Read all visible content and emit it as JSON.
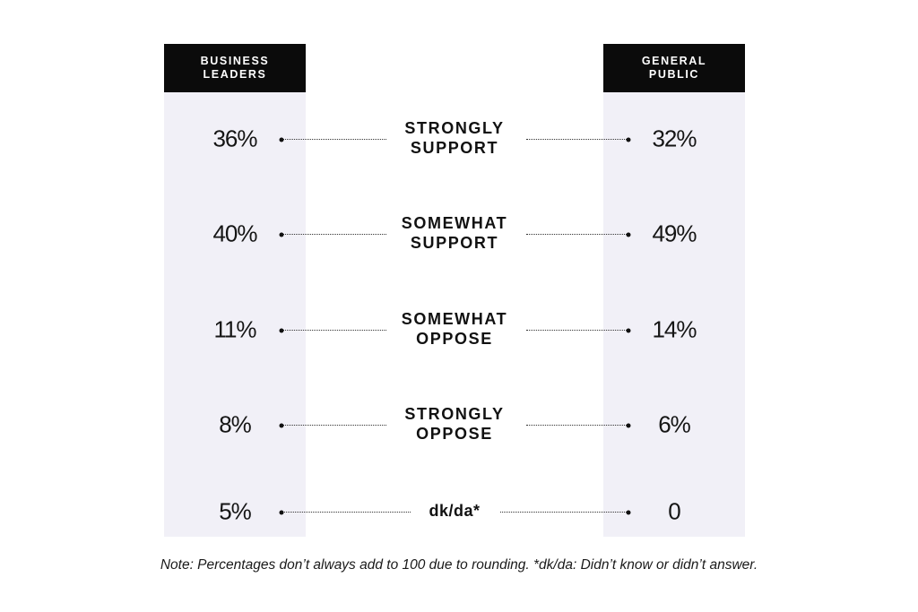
{
  "chart_data": {
    "type": "table",
    "columns": [
      {
        "name": "BUSINESS\nLEADERS"
      },
      {
        "name": "GENERAL\nPUBLIC"
      }
    ],
    "categories": [
      "STRONGLY\nSUPPORT",
      "SOMEWHAT\nSUPPORT",
      "SOMEWHAT\nOPPOSE",
      "STRONGLY\nOPPOSE",
      "dk/da*"
    ],
    "series": [
      {
        "name": "BUSINESS\nLEADERS",
        "values": [
          36,
          40,
          11,
          8,
          5
        ],
        "labels": [
          "36%",
          "40%",
          "11%",
          "8%",
          "5%"
        ]
      },
      {
        "name": "GENERAL\nPUBLIC",
        "values": [
          32,
          49,
          14,
          6,
          0
        ],
        "labels": [
          "32%",
          "49%",
          "14%",
          "6%",
          "0"
        ]
      }
    ],
    "note": "Note: Percentages don’t always add to 100 due to rounding. *dk/da: Didn’t know or didn’t answer.",
    "colors": {
      "header_bg": "#0b0b0b",
      "column_bg": "#f1f0f7",
      "text": "#111111"
    }
  }
}
